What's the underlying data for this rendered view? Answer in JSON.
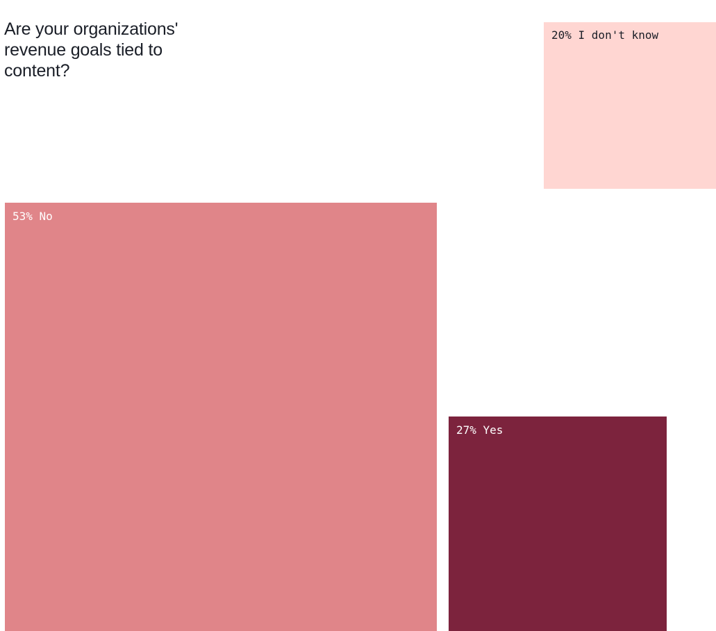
{
  "chart_data": {
    "type": "treemap",
    "title": "Are your organizations' revenue goals tied to content?",
    "unit": "%",
    "items": [
      {
        "category": "I don't know",
        "value": 20,
        "label": "20% I don't know",
        "color": "#ffd6d2",
        "text_color": "#1a1e27"
      },
      {
        "category": "No",
        "value": 53,
        "label": "53% No",
        "color": "#e08589",
        "text_color": "#ffffff"
      },
      {
        "category": "Yes",
        "value": 27,
        "label": "27% Yes",
        "color": "#7c233d",
        "text_color": "#ffffff"
      }
    ]
  }
}
